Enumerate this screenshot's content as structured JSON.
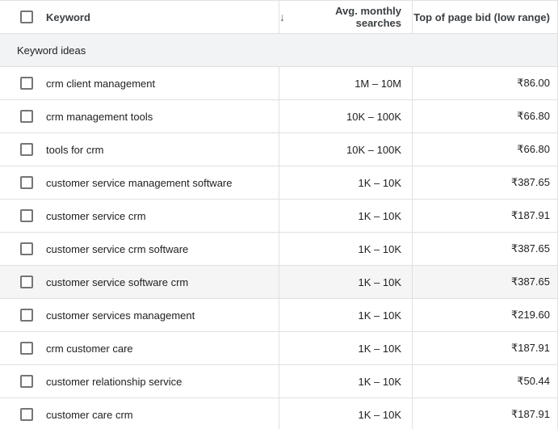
{
  "table": {
    "columns": [
      {
        "label": "Keyword"
      },
      {
        "label": "Avg. monthly searches",
        "sort_icon": "↓"
      },
      {
        "label": "Top of page bid (low range)"
      }
    ],
    "section_label": "Keyword ideas",
    "select_all_checked": false,
    "rows": [
      {
        "keyword": "crm client management",
        "avg_monthly_searches": "1M – 10M",
        "top_of_page_bid_low": "₹86.00",
        "checked": false,
        "highlighted": false
      },
      {
        "keyword": "crm management tools",
        "avg_monthly_searches": "10K – 100K",
        "top_of_page_bid_low": "₹66.80",
        "checked": false,
        "highlighted": false
      },
      {
        "keyword": "tools for crm",
        "avg_monthly_searches": "10K – 100K",
        "top_of_page_bid_low": "₹66.80",
        "checked": false,
        "highlighted": false
      },
      {
        "keyword": "customer service management software",
        "avg_monthly_searches": "1K – 10K",
        "top_of_page_bid_low": "₹387.65",
        "checked": false,
        "highlighted": false
      },
      {
        "keyword": "customer service crm",
        "avg_monthly_searches": "1K – 10K",
        "top_of_page_bid_low": "₹187.91",
        "checked": false,
        "highlighted": false
      },
      {
        "keyword": "customer service crm software",
        "avg_monthly_searches": "1K – 10K",
        "top_of_page_bid_low": "₹387.65",
        "checked": false,
        "highlighted": false
      },
      {
        "keyword": "customer service software crm",
        "avg_monthly_searches": "1K – 10K",
        "top_of_page_bid_low": "₹387.65",
        "checked": false,
        "highlighted": true
      },
      {
        "keyword": "customer services management",
        "avg_monthly_searches": "1K – 10K",
        "top_of_page_bid_low": "₹219.60",
        "checked": false,
        "highlighted": false
      },
      {
        "keyword": "crm customer care",
        "avg_monthly_searches": "1K – 10K",
        "top_of_page_bid_low": "₹187.91",
        "checked": false,
        "highlighted": false
      },
      {
        "keyword": "customer relationship service",
        "avg_monthly_searches": "1K – 10K",
        "top_of_page_bid_low": "₹50.44",
        "checked": false,
        "highlighted": false
      },
      {
        "keyword": "customer care crm",
        "avg_monthly_searches": "1K – 10K",
        "top_of_page_bid_low": "₹187.91",
        "checked": false,
        "highlighted": false
      }
    ]
  },
  "colors": {
    "border_color": "#e0e0e0",
    "section_bg": "#f1f3f4",
    "highlight_bg": "#f5f5f5",
    "header_text": "#3c4043",
    "body_text": "#202124",
    "checkbox_border": "#757575",
    "icon_gray": "#5f6368"
  }
}
